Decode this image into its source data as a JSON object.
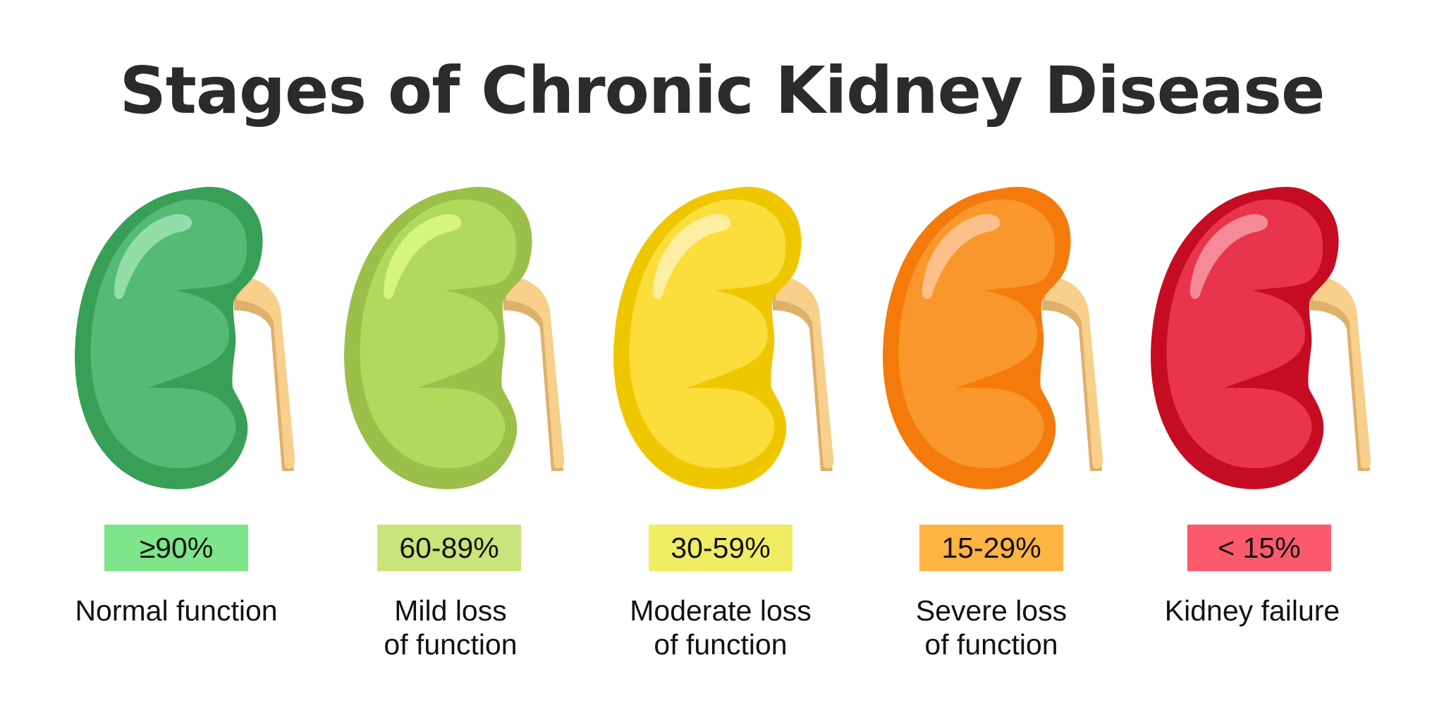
{
  "title": "Stages of Chronic Kidney Disease",
  "stages": [
    {
      "range": "≥90%",
      "description": "Normal function",
      "colors": {
        "outer": "#37a056",
        "inner": "#55bb74",
        "highlight": "#92dea8",
        "badge": "#7ee58a"
      }
    },
    {
      "range": "60-89%",
      "description": "Mild loss\nof function",
      "colors": {
        "outer": "#9bc04a",
        "inner": "#b1d95c",
        "highlight": "#d6f57e",
        "badge": "#c9e47a"
      }
    },
    {
      "range": "30-59%",
      "description": "Moderate loss\nof function",
      "colors": {
        "outer": "#efc700",
        "inner": "#fbdd3b",
        "highlight": "#fdeea2",
        "badge": "#f0ec64"
      }
    },
    {
      "range": "15-29%",
      "description": "Severe loss\nof function",
      "colors": {
        "outer": "#f47b0b",
        "inner": "#fa972c",
        "highlight": "#fcc08a",
        "badge": "#fdb443"
      }
    },
    {
      "range": "< 15%",
      "description": "Kidney failure",
      "colors": {
        "outer": "#c60c22",
        "inner": "#e8354b",
        "highlight": "#f58b98",
        "badge": "#fb5a6c"
      }
    }
  ],
  "ureter_colors": {
    "main": "#f8cf8b",
    "shadow": "#ddb06c"
  }
}
